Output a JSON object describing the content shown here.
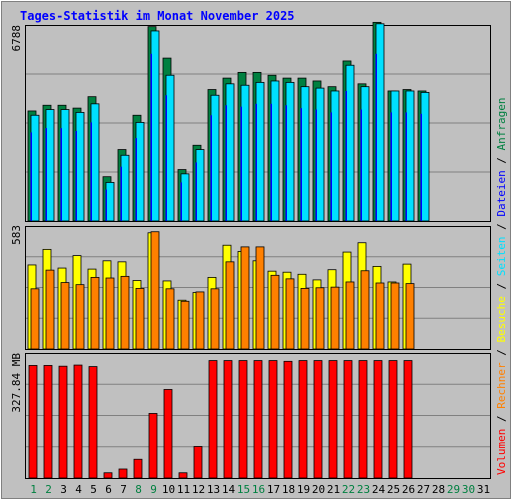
{
  "colors": {
    "background": "#c0c0c0",
    "title": "#0000ff",
    "anfragen": "#008040",
    "dateien": "#0000ff",
    "seiten": "#00e0ff",
    "besuche": "#ffff00",
    "rechner": "#ff8000",
    "volumen": "#ff0000",
    "weekend_day": "#008040",
    "weekday": "#000000"
  },
  "chart_data": [
    {
      "type": "bar",
      "title": "Tages-Statistik im Monat November 2025",
      "ymax_label": "6788",
      "ylim": [
        0,
        6788
      ],
      "grid": true,
      "categories": [
        "1",
        "2",
        "3",
        "4",
        "5",
        "6",
        "7",
        "8",
        "9",
        "10",
        "11",
        "12",
        "13",
        "14",
        "15",
        "16",
        "17",
        "18",
        "19",
        "20",
        "21",
        "22",
        "23",
        "24",
        "25",
        "26",
        "27",
        "28",
        "29",
        "30",
        "31"
      ],
      "weekend_days": [
        "1",
        "2",
        "8",
        "9",
        "15",
        "16",
        "22",
        "23",
        "29",
        "30"
      ],
      "series": [
        {
          "name": "Anfragen",
          "values": [
            3850,
            4050,
            4050,
            3950,
            4350,
            1550,
            2500,
            3700,
            6800,
            5700,
            1800,
            2650,
            4600,
            5000,
            5200,
            5200,
            5100,
            5000,
            5000,
            4900,
            4700,
            5600,
            4800,
            6950,
            4550,
            4600,
            4550,
            0,
            0,
            0,
            0
          ]
        },
        {
          "name": "Seiten",
          "values": [
            3700,
            3900,
            3900,
            3800,
            4100,
            1350,
            2300,
            3450,
            6650,
            5100,
            1650,
            2500,
            4400,
            4800,
            4750,
            4850,
            4900,
            4850,
            4700,
            4650,
            4550,
            5450,
            4700,
            6900,
            4550,
            4550,
            4500,
            0,
            0,
            0,
            0
          ]
        },
        {
          "name": "Dateien",
          "values": [
            3100,
            3250,
            3250,
            3150,
            3450,
            1100,
            1900,
            2900,
            5850,
            4400,
            1350,
            2050,
            3700,
            4050,
            4000,
            4100,
            4100,
            4050,
            3950,
            3900,
            3800,
            4550,
            3900,
            5850,
            3800,
            3800,
            3750,
            0,
            0,
            0,
            0
          ]
        }
      ]
    },
    {
      "type": "bar",
      "ymax_label": "583",
      "ylim": [
        0,
        583
      ],
      "grid": true,
      "series": [
        {
          "name": "Besuche",
          "values": [
            405,
            480,
            390,
            450,
            385,
            425,
            420,
            330,
            560,
            328,
            235,
            272,
            345,
            500,
            470,
            425,
            375,
            370,
            360,
            333,
            382,
            467,
            512,
            398,
            323,
            409,
            0,
            0,
            0,
            0
          ]
        },
        {
          "name": "Rechner",
          "values": [
            290,
            380,
            320,
            310,
            345,
            342,
            350,
            292,
            565,
            290,
            230,
            275,
            290,
            420,
            492,
            492,
            355,
            338,
            292,
            295,
            298,
            323,
            377,
            318,
            318,
            315,
            0,
            0,
            0,
            0
          ]
        }
      ]
    },
    {
      "type": "bar",
      "ymax_label": "327.84 MB",
      "ylim": [
        0,
        327.84
      ],
      "grid": true,
      "series": [
        {
          "name": "Volumen",
          "values": [
            300,
            300,
            298,
            301,
            297,
            14,
            24,
            50,
            172,
            236,
            14,
            84,
            313,
            313,
            313,
            313,
            313,
            311,
            313,
            313,
            313,
            313,
            313,
            313,
            313,
            313,
            0,
            0,
            0,
            0
          ]
        }
      ]
    }
  ],
  "side_legend": [
    "Volumen",
    "Rechner",
    "Besuche",
    "Seiten",
    "Dateien",
    "Anfragen"
  ],
  "side_legend_sep": "/"
}
